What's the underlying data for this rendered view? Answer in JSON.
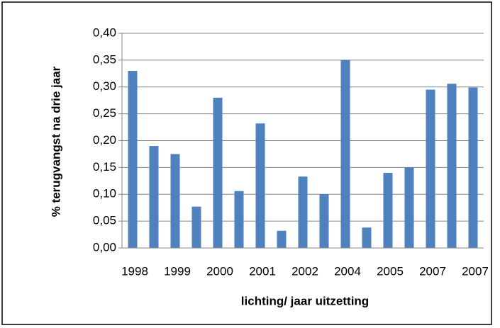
{
  "chart_data": {
    "type": "bar",
    "y_label": "% terugvangst na drie jaar",
    "x_label": "lichting/ jaar uitzetting",
    "categories": [
      "1998",
      null,
      "1999",
      null,
      "2000",
      null,
      "2001",
      null,
      "2002",
      null,
      "2004",
      null,
      "2005",
      null,
      "2007",
      null,
      "2007"
    ],
    "values": [
      0.33,
      0.19,
      0.175,
      0.077,
      0.28,
      0.106,
      0.232,
      0.032,
      0.133,
      0.1,
      0.35,
      0.038,
      0.14,
      0.15,
      0.295,
      0.306,
      0.299
    ],
    "color": "#4f81bd",
    "ylim": [
      0,
      0.4
    ],
    "yticks": [
      {
        "value": 0,
        "label": "0,00"
      },
      {
        "value": 0.05,
        "label": "0,05"
      },
      {
        "value": 0.1,
        "label": "0,10"
      },
      {
        "value": 0.15,
        "label": "0,15"
      },
      {
        "value": 0.2,
        "label": "0,20"
      },
      {
        "value": 0.25,
        "label": "0,25"
      },
      {
        "value": 0.3,
        "label": "0,30"
      },
      {
        "value": 0.35,
        "label": "0,35"
      },
      {
        "value": 0.4,
        "label": "0,40"
      }
    ],
    "grid": true
  }
}
